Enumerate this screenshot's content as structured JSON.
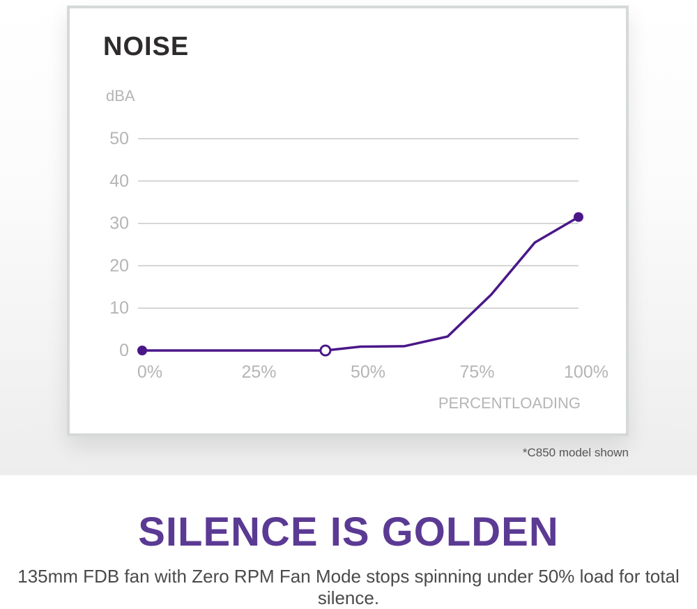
{
  "chart_data": {
    "type": "line",
    "title": "NOISE",
    "ylabel": "dBA",
    "xlabel": "PERCENTLOADING",
    "xlim": [
      0,
      100
    ],
    "ylim": [
      0,
      50
    ],
    "x_ticks": [
      "0%",
      "25%",
      "50%",
      "75%",
      "100%"
    ],
    "y_ticks": [
      "50",
      "40",
      "30",
      "20",
      "10",
      "0"
    ],
    "grid": true,
    "series": [
      {
        "color": "#4a1789",
        "points": [
          {
            "x": 0,
            "y": 0
          },
          {
            "x": 42,
            "y": 0
          },
          {
            "x": 50,
            "y": 0.9
          },
          {
            "x": 60,
            "y": 1.0
          },
          {
            "x": 70,
            "y": 3.3
          },
          {
            "x": 80,
            "y": 13.2
          },
          {
            "x": 90,
            "y": 25.5
          },
          {
            "x": 100,
            "y": 31.5
          }
        ],
        "markers": [
          {
            "x": 0,
            "y": 0,
            "style": "filled"
          },
          {
            "x": 42,
            "y": 0,
            "style": "open"
          },
          {
            "x": 100,
            "y": 31.5,
            "style": "filled"
          }
        ]
      }
    ]
  },
  "footnote": "*C850 model shown",
  "headline": "SILENCE IS GOLDEN",
  "description": "135mm FDB fan with Zero RPM Fan Mode stops spinning under 50% load for total silence.",
  "colors": {
    "accent": "#5b3a94",
    "line": "#4a1789",
    "grid": "#c8c8c8",
    "axis_text": "#b5b5b5",
    "card_border": "#d5d9d8"
  }
}
